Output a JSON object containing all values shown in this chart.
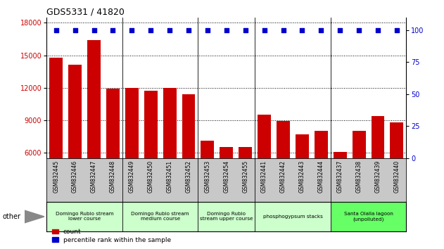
{
  "title": "GDS5331 / 41820",
  "categories": [
    "GSM832445",
    "GSM832446",
    "GSM832447",
    "GSM832448",
    "GSM832449",
    "GSM832450",
    "GSM832451",
    "GSM832452",
    "GSM832453",
    "GSM832454",
    "GSM832455",
    "GSM832441",
    "GSM832442",
    "GSM832443",
    "GSM832444",
    "GSM832437",
    "GSM832438",
    "GSM832439",
    "GSM832440"
  ],
  "counts": [
    14800,
    14100,
    16400,
    11900,
    12000,
    11700,
    12000,
    11400,
    7100,
    6500,
    6500,
    9500,
    8900,
    7700,
    8000,
    6100,
    8000,
    9400,
    8800
  ],
  "bar_color": "#cc0000",
  "dot_color": "#0000cc",
  "ylim_left": [
    5500,
    18500
  ],
  "ylim_right": [
    0,
    110
  ],
  "yticks_left": [
    6000,
    9000,
    12000,
    15000,
    18000
  ],
  "yticks_right": [
    0,
    25,
    50,
    75,
    100
  ],
  "groups": [
    {
      "label": "Domingo Rubio stream\nlower course",
      "start": 0,
      "end": 3,
      "color": "#ccffcc"
    },
    {
      "label": "Domingo Rubio stream\nmedium course",
      "start": 4,
      "end": 7,
      "color": "#ccffcc"
    },
    {
      "label": "Domingo Rubio\nstream upper course",
      "start": 8,
      "end": 10,
      "color": "#ccffcc"
    },
    {
      "label": "phosphogypsum stacks",
      "start": 11,
      "end": 14,
      "color": "#ccffcc"
    },
    {
      "label": "Santa Olalla lagoon\n(unpolluted)",
      "start": 15,
      "end": 18,
      "color": "#66ff66"
    }
  ],
  "group_boundaries": [
    3.5,
    7.5,
    10.5,
    14.5
  ],
  "other_label": "other",
  "legend_count_label": "count",
  "legend_pct_label": "percentile rank within the sample",
  "tick_area_color": "#c8c8c8"
}
